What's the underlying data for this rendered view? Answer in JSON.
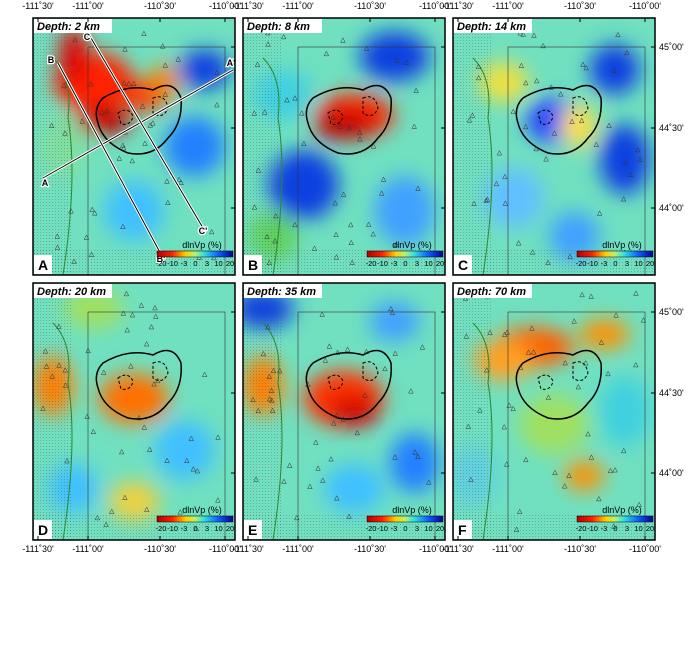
{
  "panels": [
    {
      "depth": "Depth: 2 km",
      "letter": "A"
    },
    {
      "depth": "Depth: 8 km",
      "letter": "B"
    },
    {
      "depth": "Depth: 14 km",
      "letter": "C"
    },
    {
      "depth": "Depth: 20 km",
      "letter": "D"
    },
    {
      "depth": "Depth: 35 km",
      "letter": "E"
    },
    {
      "depth": "Depth: 70 km",
      "letter": "F"
    }
  ],
  "x_labels": [
    "-111˚30'",
    "-111˚00'",
    "-110˚30'",
    "-110˚00'"
  ],
  "y_labels": [
    "45˚00'",
    "44˚30'",
    "44˚00'"
  ],
  "colorbar": {
    "label": "dlnVp (%)",
    "ticks": [
      "-20",
      "-10",
      "-3",
      "0",
      "3",
      "10",
      "20"
    ]
  },
  "sections": [
    "A",
    "A'",
    "B",
    "B'",
    "C",
    "C'"
  ]
}
